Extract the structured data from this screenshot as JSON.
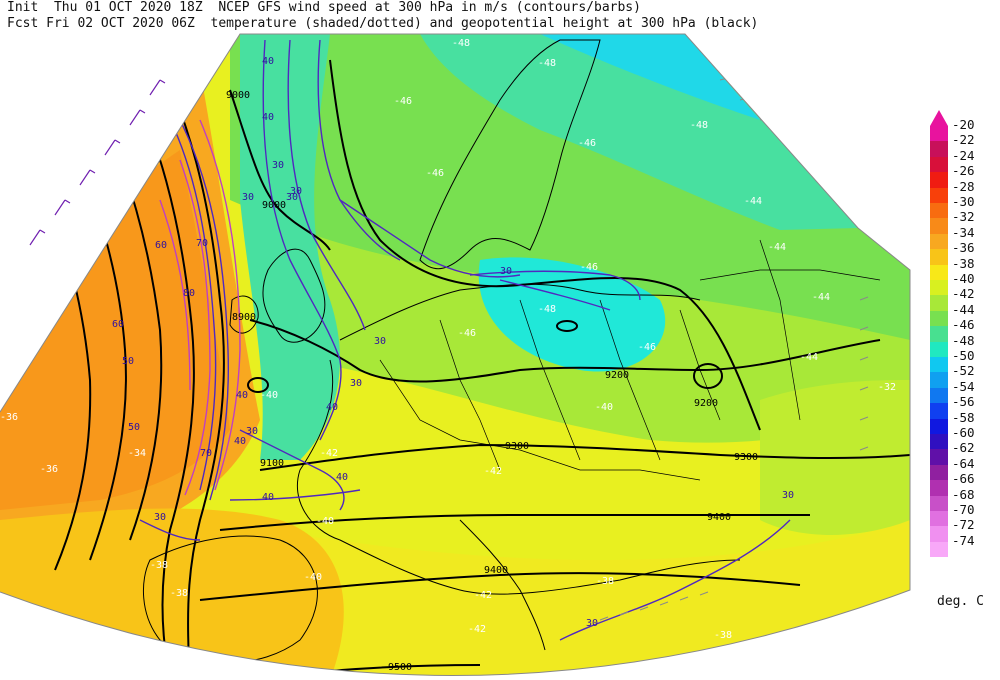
{
  "header": {
    "line1": "Init  Thu 01 OCT 2020 18Z  NCEP GFS wind speed at 300 hPa in m/s (contours/barbs)",
    "line2": "Fcst Fri 02 OCT 2020 06Z  temperature (shaded/dotted) and geopotential height at 300 hPa (black)"
  },
  "colorbar": {
    "units": "deg. C",
    "levels": [
      {
        "label": "-20",
        "color": "#e8139e"
      },
      {
        "label": "-22",
        "color": "#c8105a"
      },
      {
        "label": "-24",
        "color": "#d8103a"
      },
      {
        "label": "-26",
        "color": "#f01c12"
      },
      {
        "label": "-28",
        "color": "#f8400a"
      },
      {
        "label": "-30",
        "color": "#f86c10"
      },
      {
        "label": "-32",
        "color": "#f88a18"
      },
      {
        "label": "-34",
        "color": "#f8a820"
      },
      {
        "label": "-36",
        "color": "#f8c418"
      },
      {
        "label": "-38",
        "color": "#f8e818"
      },
      {
        "label": "-40",
        "color": "#d8f020"
      },
      {
        "label": "-42",
        "color": "#a8e838"
      },
      {
        "label": "-44",
        "color": "#78e050"
      },
      {
        "label": "-46",
        "color": "#48e090"
      },
      {
        "label": "-48",
        "color": "#20e8c0"
      },
      {
        "label": "-50",
        "color": "#10c8f0"
      },
      {
        "label": "-52",
        "color": "#10a0f0"
      },
      {
        "label": "-54",
        "color": "#1078f0"
      },
      {
        "label": "-56",
        "color": "#1040f0"
      },
      {
        "label": "-58",
        "color": "#1018e0"
      },
      {
        "label": "-60",
        "color": "#3010c0"
      },
      {
        "label": "-62",
        "color": "#6010a8"
      },
      {
        "label": "-64",
        "color": "#9020a0"
      },
      {
        "label": "-66",
        "color": "#b030b0"
      },
      {
        "label": "-68",
        "color": "#c850c8"
      },
      {
        "label": "-70",
        "color": "#e070e0"
      },
      {
        "label": "-72",
        "color": "#f090f0"
      },
      {
        "label": "-74",
        "color": "#f8a8f8"
      }
    ]
  },
  "map": {
    "wind_labels": [
      "40",
      "40",
      "30",
      "30",
      "60",
      "70",
      "80",
      "60",
      "50",
      "40",
      "30",
      "40",
      "30",
      "30",
      "30",
      "40",
      "30",
      "40",
      "40",
      "30",
      "30",
      "30",
      "30",
      "50",
      "70"
    ],
    "height_labels": [
      "9000",
      "9000",
      "8900",
      "9100",
      "9200",
      "9200",
      "9300",
      "9300",
      "9400",
      "9400",
      "9500"
    ],
    "temp_labels": [
      "-48",
      "-48",
      "-46",
      "-48",
      "-46",
      "-46",
      "-44",
      "-44",
      "-44",
      "-46",
      "-46",
      "-48",
      "-40",
      "-42",
      "-44",
      "-46",
      "-42",
      "-40",
      "-38",
      "-36",
      "-38",
      "-40",
      "-40",
      "-42",
      "-42",
      "-38",
      "-38",
      "-36",
      "-34",
      "-32"
    ]
  }
}
